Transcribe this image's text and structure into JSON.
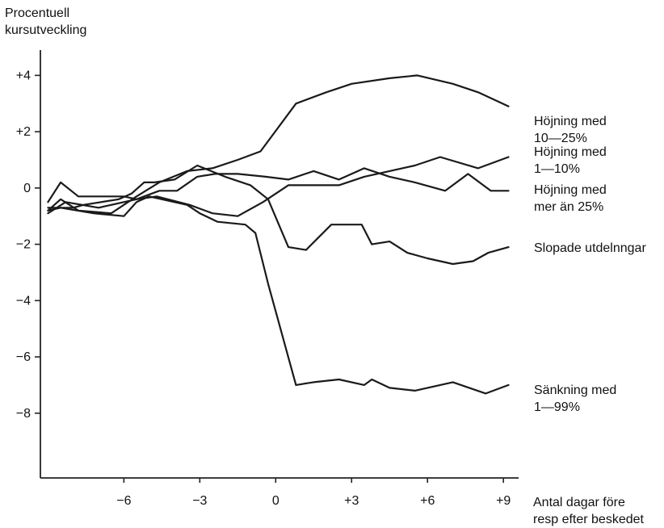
{
  "chart_data": {
    "type": "line",
    "ylabel_lines": [
      "Procentuell",
      "kursutveckling"
    ],
    "xlabel_lines": [
      "Antal dagar före",
      "resp efter beskedet"
    ],
    "xlim": [
      -9.3,
      9.6
    ],
    "ylim": [
      -10.3,
      4.9
    ],
    "x_ticks": [
      -6,
      -3,
      0,
      3,
      6,
      9
    ],
    "x_tick_labels": [
      "−6",
      "−3",
      "0",
      "+3",
      "+6",
      "+9"
    ],
    "y_ticks": [
      4,
      2,
      0,
      -2,
      -4,
      -6,
      -8
    ],
    "y_tick_labels": [
      "+4",
      "+2",
      "0",
      "−2",
      "−4",
      "−6",
      "−8"
    ],
    "series": [
      {
        "name": "Höjning med 10—25%",
        "label_lines": [
          "Höjning med",
          "10—25%"
        ],
        "x": [
          -9,
          -8.5,
          -7.8,
          -6.5,
          -5.5,
          -4.6,
          -3.5,
          -2.5,
          -1.5,
          -0.6,
          0.8,
          2,
          3,
          4.5,
          5.6,
          7,
          8,
          9.2
        ],
        "y": [
          -0.8,
          -0.4,
          -0.8,
          -0.9,
          -0.3,
          0.2,
          0.6,
          0.7,
          1.0,
          1.3,
          3.0,
          3.4,
          3.7,
          3.9,
          4.0,
          3.7,
          3.4,
          2.9
        ]
      },
      {
        "name": "Höjning med 1—10%",
        "label_lines": [
          "Höjning med",
          "1—10%"
        ],
        "x": [
          -9,
          -8.3,
          -7,
          -5.5,
          -4.7,
          -3.4,
          -2.5,
          -1.5,
          -0.5,
          0.5,
          1.5,
          2.5,
          3.5,
          4.5,
          5.5,
          6.5,
          8,
          9.2
        ],
        "y": [
          -0.9,
          -0.5,
          -0.7,
          -0.4,
          -0.3,
          -0.6,
          -0.9,
          -1.0,
          -0.5,
          0.1,
          0.1,
          0.1,
          0.4,
          0.6,
          0.8,
          1.1,
          0.7,
          1.1
        ]
      },
      {
        "name": "Höjning med mer än 25%",
        "label_lines": [
          "Höjning med",
          "mer än 25%"
        ],
        "x": [
          -9,
          -8.5,
          -7.8,
          -6.6,
          -6,
          -5.5,
          -4.6,
          -3.9,
          -3.1,
          -2.4,
          -1.5,
          -0.4,
          0.5,
          1.5,
          2.5,
          3.5,
          4.5,
          5.5,
          6.7,
          7.6,
          8.5,
          9.2
        ],
        "y": [
          -0.5,
          0.2,
          -0.3,
          -0.3,
          -0.3,
          -0.4,
          -0.1,
          -0.1,
          0.4,
          0.5,
          0.5,
          0.4,
          0.3,
          0.6,
          0.3,
          0.7,
          0.4,
          0.2,
          -0.1,
          0.5,
          -0.1,
          -0.1
        ]
      },
      {
        "name": "Slopade utdelnngar",
        "label_lines": [
          "Slopade utdelnngar"
        ],
        "x": [
          -9,
          -8,
          -7.6,
          -6.2,
          -5.7,
          -5.2,
          -4.8,
          -4,
          -3.1,
          -2,
          -1,
          -0.3,
          0.5,
          1.2,
          2.2,
          3.4,
          3.8,
          4.5,
          5.2,
          6,
          7,
          7.8,
          8.4,
          9.2
        ],
        "y": [
          -0.7,
          -0.7,
          -0.6,
          -0.4,
          -0.2,
          0.2,
          0.2,
          0.3,
          0.8,
          0.4,
          0.1,
          -0.4,
          -2.1,
          -2.2,
          -1.3,
          -1.3,
          -2.0,
          -1.9,
          -2.3,
          -2.5,
          -2.7,
          -2.6,
          -2.3,
          -2.1
        ]
      },
      {
        "name": "Sänkning med 1—99%",
        "label_lines": [
          "Sänkning med",
          "1—99%"
        ],
        "x": [
          -9,
          -8.5,
          -7.2,
          -6,
          -5.5,
          -5,
          -4.5,
          -3.5,
          -3,
          -2.3,
          -1.2,
          -0.8,
          -0.3,
          0.8,
          1.5,
          2.5,
          3.5,
          3.8,
          4.5,
          5.5,
          7,
          8.3,
          9.2
        ],
        "y": [
          -0.8,
          -0.7,
          -0.9,
          -1.0,
          -0.5,
          -0.3,
          -0.4,
          -0.6,
          -0.9,
          -1.2,
          -1.3,
          -1.6,
          -3.4,
          -7.0,
          -6.9,
          -6.8,
          -7.0,
          -6.8,
          -7.1,
          -7.2,
          -6.9,
          -7.3,
          -7.0
        ]
      }
    ]
  }
}
